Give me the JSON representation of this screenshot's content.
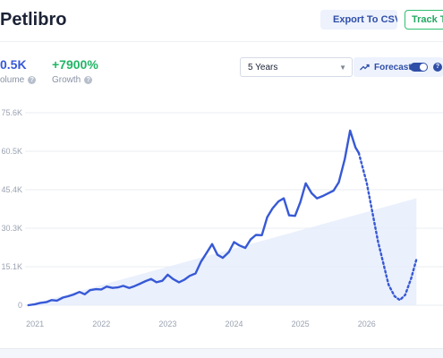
{
  "header": {
    "title": "Petlibro",
    "export_label": "Export To CSV",
    "track_label": "Track To"
  },
  "stats": {
    "volume_value": "0.5K",
    "volume_label": "olume",
    "growth_value": "+7900%",
    "growth_label": "Growth"
  },
  "controls": {
    "range_selected": "5 Years",
    "forecast_label": "Forecast",
    "forecast_on": true
  },
  "colors": {
    "accent": "#3759d6",
    "growth": "#22b566",
    "trend_fill": "#e6edfb"
  },
  "chart_data": {
    "type": "line",
    "title": "",
    "xlabel": "",
    "ylabel": "",
    "x_ticks": [
      "2021",
      "2022",
      "2023",
      "2024",
      "2025",
      "2026"
    ],
    "y_ticks": [
      "0",
      "15.1K",
      "30.3K",
      "45.4K",
      "60.5K",
      "75.6K"
    ],
    "ylim": [
      0,
      75600
    ],
    "xlim": [
      2020.85,
      2027.15
    ],
    "grid": true,
    "series": [
      {
        "kind": "actual",
        "points": [
          [
            2020.9,
            0
          ],
          [
            2021.0,
            400
          ],
          [
            2021.08,
            900
          ],
          [
            2021.17,
            1200
          ],
          [
            2021.25,
            2000
          ],
          [
            2021.33,
            1800
          ],
          [
            2021.42,
            3000
          ],
          [
            2021.5,
            3500
          ],
          [
            2021.58,
            4200
          ],
          [
            2021.67,
            5200
          ],
          [
            2021.75,
            4300
          ],
          [
            2021.83,
            5900
          ],
          [
            2021.92,
            6300
          ],
          [
            2022.0,
            6200
          ],
          [
            2022.08,
            7300
          ],
          [
            2022.17,
            6800
          ],
          [
            2022.25,
            7000
          ],
          [
            2022.33,
            7600
          ],
          [
            2022.42,
            6800
          ],
          [
            2022.5,
            7500
          ],
          [
            2022.58,
            8400
          ],
          [
            2022.67,
            9500
          ],
          [
            2022.75,
            10300
          ],
          [
            2022.83,
            9000
          ],
          [
            2022.92,
            9600
          ],
          [
            2023.0,
            12000
          ],
          [
            2023.08,
            10300
          ],
          [
            2023.17,
            9000
          ],
          [
            2023.25,
            10000
          ],
          [
            2023.33,
            11500
          ],
          [
            2023.42,
            12500
          ],
          [
            2023.5,
            17000
          ],
          [
            2023.58,
            20300
          ],
          [
            2023.67,
            24000
          ],
          [
            2023.75,
            19800
          ],
          [
            2023.83,
            18600
          ],
          [
            2023.92,
            20800
          ],
          [
            2024.0,
            24800
          ],
          [
            2024.08,
            23500
          ],
          [
            2024.17,
            22500
          ],
          [
            2024.25,
            25800
          ],
          [
            2024.33,
            27600
          ],
          [
            2024.42,
            27500
          ],
          [
            2024.5,
            34600
          ],
          [
            2024.58,
            38000
          ],
          [
            2024.67,
            40800
          ],
          [
            2024.75,
            42000
          ],
          [
            2024.83,
            35300
          ],
          [
            2024.92,
            35100
          ],
          [
            2025.0,
            40500
          ],
          [
            2025.08,
            47900
          ],
          [
            2025.17,
            44000
          ],
          [
            2025.25,
            42000
          ],
          [
            2025.33,
            42800
          ],
          [
            2025.42,
            44000
          ],
          [
            2025.5,
            45000
          ],
          [
            2025.58,
            48300
          ],
          [
            2025.67,
            57500
          ],
          [
            2025.75,
            68600
          ],
          [
            2025.83,
            62000
          ],
          [
            2025.88,
            59800
          ]
        ]
      },
      {
        "kind": "forecast",
        "points": [
          [
            2025.88,
            59800
          ],
          [
            2026.0,
            48000
          ],
          [
            2026.17,
            25000
          ],
          [
            2026.33,
            8000
          ],
          [
            2026.42,
            3500
          ],
          [
            2026.5,
            2000
          ],
          [
            2026.58,
            4000
          ],
          [
            2026.67,
            10500
          ],
          [
            2026.75,
            18000
          ]
        ]
      },
      {
        "kind": "trend",
        "points": [
          [
            2020.9,
            0
          ],
          [
            2026.75,
            42000
          ]
        ]
      }
    ]
  }
}
